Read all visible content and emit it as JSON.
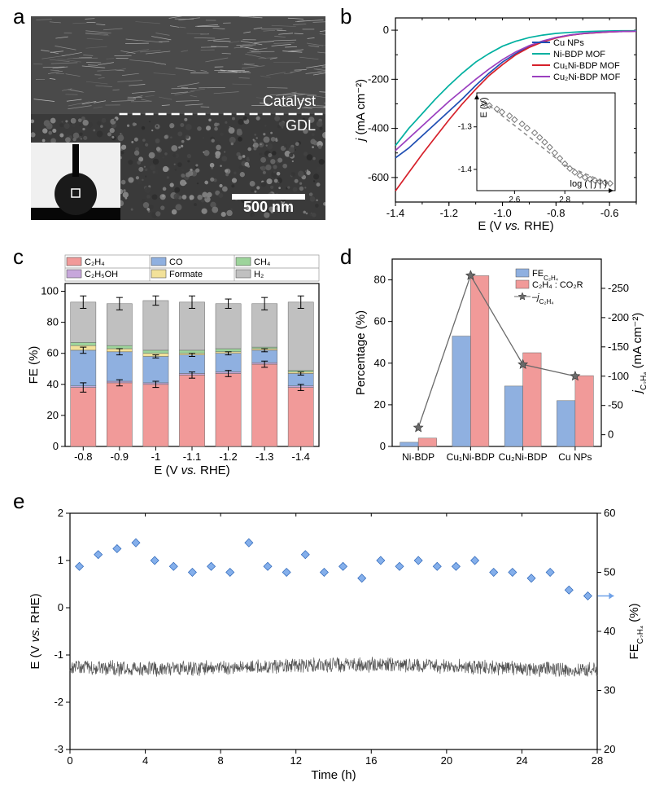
{
  "panel_labels": {
    "a": "a",
    "b": "b",
    "c": "c",
    "d": "d",
    "e": "e"
  },
  "panel_a": {
    "top_label": "Catalyst",
    "bottom_label": "GDL",
    "scale_bar_text": "500 nm",
    "label_color": "#ffffff",
    "image_bg": "#2b2b2b",
    "catalyst_bg": "#4a4a4a",
    "gdl_bg": "#3a3a3a",
    "dash_color": "#ffffff",
    "contact_bg": "#f0f0f0",
    "droplet_fill": "#1a1a1a"
  },
  "panel_b": {
    "type": "line",
    "xlabel": "E (V vs. RHE)",
    "ylabel": "j (mA cm⁻²)",
    "xlabel_label": "E (V ",
    "xlabel_vs": "vs.",
    "xlabel_RHE": " RHE)",
    "ylabel_j": "j",
    "ylabel_rest": " (mA cm⁻²)",
    "axis_color": "#000000",
    "tick_fontsize": 13,
    "label_fontsize": 15,
    "xlim": [
      -1.4,
      -0.5
    ],
    "ylim": [
      -700,
      50
    ],
    "xticks": [
      -1.4,
      -1.2,
      -1.0,
      -0.8,
      -0.6
    ],
    "yticks": [
      -600,
      -400,
      -200,
      0
    ],
    "series": [
      {
        "name": "Cu NPs",
        "color": "#1f4fb3",
        "x": [
          -1.4,
          -1.35,
          -1.3,
          -1.25,
          -1.2,
          -1.15,
          -1.1,
          -1.05,
          -1.0,
          -0.95,
          -0.9,
          -0.85,
          -0.8,
          -0.75,
          -0.7,
          -0.65,
          -0.6,
          -0.55,
          -0.5
        ],
        "y": [
          -520,
          -480,
          -430,
          -380,
          -330,
          -280,
          -225,
          -175,
          -130,
          -95,
          -65,
          -45,
          -30,
          -20,
          -14,
          -10,
          -7,
          -5,
          -4
        ]
      },
      {
        "name": "Ni-BDP MOF",
        "color": "#00b0a0",
        "x": [
          -1.4,
          -1.35,
          -1.3,
          -1.25,
          -1.2,
          -1.15,
          -1.1,
          -1.05,
          -1.0,
          -0.95,
          -0.9,
          -0.85,
          -0.8,
          -0.75,
          -0.7,
          -0.65,
          -0.6,
          -0.55,
          -0.5
        ],
        "y": [
          -470,
          -400,
          -340,
          -280,
          -225,
          -175,
          -130,
          -95,
          -65,
          -45,
          -30,
          -20,
          -13,
          -9,
          -6,
          -4,
          -3,
          -2,
          -2
        ]
      },
      {
        "name": "Cu₁Ni-BDP MOF",
        "color": "#d6202a",
        "x": [
          -1.4,
          -1.35,
          -1.3,
          -1.25,
          -1.2,
          -1.15,
          -1.1,
          -1.05,
          -1.0,
          -0.95,
          -0.9,
          -0.85,
          -0.8,
          -0.75,
          -0.7,
          -0.65,
          -0.6,
          -0.55,
          -0.5
        ],
        "y": [
          -655,
          -580,
          -505,
          -435,
          -365,
          -300,
          -240,
          -185,
          -140,
          -100,
          -70,
          -48,
          -32,
          -21,
          -14,
          -10,
          -7,
          -5,
          -4
        ]
      },
      {
        "name": "Cu₂Ni-BDP MOF",
        "color": "#9b3fbf",
        "x": [
          -1.4,
          -1.35,
          -1.3,
          -1.25,
          -1.2,
          -1.15,
          -1.1,
          -1.05,
          -1.0,
          -0.95,
          -0.9,
          -0.85,
          -0.8,
          -0.75,
          -0.7,
          -0.65,
          -0.6,
          -0.55,
          -0.5
        ],
        "y": [
          -490,
          -440,
          -390,
          -340,
          -290,
          -245,
          -200,
          -158,
          -120,
          -88,
          -63,
          -44,
          -30,
          -20,
          -13,
          -9,
          -6,
          -5,
          -4
        ]
      }
    ],
    "legend_labels": [
      "Cu NPs",
      "Ni-BDP MOF",
      "Cu₁Ni-BDP MOF",
      "Cu₂Ni-BDP MOF"
    ],
    "inset": {
      "xlabel": "log ( | j | )",
      "xlabel_log": "log ( | ",
      "xlabel_j": "j",
      "xlabel_end": " | )",
      "ylabel": "E (V)",
      "xlim": [
        2.45,
        3.0
      ],
      "ylim": [
        -1.45,
        -1.22
      ],
      "xticks": [
        2.6,
        2.8
      ],
      "yticks": [
        -1.4,
        -1.3
      ],
      "marker_color": "#777777",
      "marker": "diamond",
      "x": [
        2.48,
        2.5,
        2.53,
        2.55,
        2.58,
        2.6,
        2.63,
        2.65,
        2.68,
        2.7,
        2.72,
        2.74,
        2.76,
        2.78,
        2.8,
        2.82,
        2.84,
        2.86,
        2.88,
        2.9,
        2.92,
        2.94,
        2.96,
        2.98
      ],
      "y": [
        -1.245,
        -1.25,
        -1.258,
        -1.265,
        -1.274,
        -1.283,
        -1.293,
        -1.303,
        -1.314,
        -1.325,
        -1.336,
        -1.348,
        -1.361,
        -1.374,
        -1.387,
        -1.398,
        -1.407,
        -1.414,
        -1.419,
        -1.423,
        -1.426,
        -1.429,
        -1.431,
        -1.433
      ]
    }
  },
  "panel_c": {
    "type": "stacked-bar",
    "xlabel_label": "E (V ",
    "xlabel_vs": "vs.",
    "xlabel_RHE": " RHE)",
    "ylabel": "FE (%)",
    "ylim": [
      0,
      105
    ],
    "yticks": [
      0,
      20,
      40,
      60,
      80,
      100
    ],
    "categories": [
      "-0.8",
      "-0.9",
      "-1",
      "-1.1",
      "-1.2",
      "-1.3",
      "-1.4"
    ],
    "legend": [
      {
        "label": "C₂H₄",
        "color": "#f19a99"
      },
      {
        "label": "CO",
        "color": "#8fb0e0"
      },
      {
        "label": "CH₄",
        "color": "#9dd49b"
      },
      {
        "label": "C₂H₅OH",
        "color": "#c7a7db"
      },
      {
        "label": "Formate",
        "color": "#f2e199"
      },
      {
        "label": "H₂",
        "color": "#c0c0c0"
      }
    ],
    "stacks": [
      {
        "C2H4": 38,
        "C2H5OH": 1,
        "CO": 23,
        "Formate": 3,
        "CH4": 2,
        "H2": 26
      },
      {
        "C2H4": 41,
        "C2H5OH": 1,
        "CO": 19,
        "Formate": 2,
        "CH4": 2,
        "H2": 27
      },
      {
        "C2H4": 40,
        "C2H5OH": 1,
        "CO": 17,
        "Formate": 2,
        "CH4": 2,
        "H2": 32
      },
      {
        "C2H4": 46,
        "C2H5OH": 1,
        "CO": 12,
        "Formate": 1,
        "CH4": 2,
        "H2": 31
      },
      {
        "C2H4": 47,
        "C2H5OH": 1,
        "CO": 12,
        "Formate": 1,
        "CH4": 2,
        "H2": 29
      },
      {
        "C2H4": 53,
        "C2H5OH": 1,
        "CO": 8,
        "Formate": 1,
        "CH4": 1,
        "H2": 28
      },
      {
        "C2H4": 38,
        "C2H5OH": 1,
        "CO": 8,
        "Formate": 1,
        "CH4": 1,
        "H2": 44
      }
    ],
    "errors": [
      {
        "C2H4": 3,
        "CO": 2,
        "H2": 4
      },
      {
        "C2H4": 2,
        "CO": 2,
        "H2": 4
      },
      {
        "C2H4": 2,
        "CO": 1,
        "H2": 3
      },
      {
        "C2H4": 2,
        "CO": 1,
        "H2": 4
      },
      {
        "C2H4": 2,
        "CO": 1,
        "H2": 3
      },
      {
        "C2H4": 2,
        "CO": 1,
        "H2": 4
      },
      {
        "C2H4": 2,
        "CO": 1,
        "H2": 4
      }
    ],
    "bar_width": 0.7,
    "tick_fontsize": 13,
    "label_fontsize": 15,
    "legend_fontsize": 11
  },
  "panel_d": {
    "type": "bar-line",
    "categories": [
      "Ni-BDP",
      "Cu₁Ni-BDP",
      "Cu₂Ni-BDP",
      "Cu NPs"
    ],
    "left_ylabel": "Percentage (%)",
    "right_ylabel_j": "j",
    "right_ylabel_sub": "C₂H₄",
    "right_ylabel_unit": " (mA cm⁻²)",
    "left_ylim": [
      0,
      90
    ],
    "left_yticks": [
      0,
      20,
      40,
      60,
      80
    ],
    "right_ylim": [
      20,
      -300
    ],
    "right_yticks": [
      0,
      -50,
      -100,
      -150,
      -200,
      -250
    ],
    "legend": [
      {
        "label": "FEC₂H₄",
        "color": "#8fb0e0",
        "type": "bar",
        "label_main": "FE"
      },
      {
        "label": "C₂H₄ : CO₂R",
        "color": "#f19a99",
        "type": "bar"
      },
      {
        "label": "–jC₂H₄",
        "color": "#6a6a6a",
        "type": "line",
        "marker": "star",
        "label_dash": "–",
        "label_j": "j"
      }
    ],
    "bars": [
      {
        "FE": 2,
        "ratio": 4
      },
      {
        "FE": 53,
        "ratio": 82
      },
      {
        "FE": 29,
        "ratio": 45
      },
      {
        "FE": 22,
        "ratio": 34
      }
    ],
    "line_y_right": [
      -12,
      -272,
      -120,
      -100
    ],
    "bar_width": 0.35,
    "tick_fontsize": 13,
    "label_fontsize": 15
  },
  "panel_e": {
    "type": "time-series-dual",
    "xlabel": "Time (h)",
    "left_ylabel_E": "E (V ",
    "left_ylabel_vs": "vs.",
    "left_ylabel_RHE": " RHE)",
    "right_ylabel_FE": "FE",
    "right_ylabel_sub": "C₂H₄",
    "right_ylabel_unit": " (%)",
    "xlim": [
      0,
      28
    ],
    "xticks": [
      0,
      4,
      8,
      12,
      16,
      20,
      24,
      28
    ],
    "left_ylim": [
      -3,
      2
    ],
    "left_yticks": [
      -3,
      -2,
      -1,
      0,
      1,
      2
    ],
    "right_ylim": [
      20,
      60
    ],
    "right_yticks": [
      20,
      30,
      40,
      50,
      60
    ],
    "trace_color": "#555555",
    "trace_mean": -1.25,
    "trace_noise": 0.18,
    "diamond_color": "#6fa1e8",
    "diamond_x": [
      0.5,
      1.5,
      2.5,
      3.5,
      4.5,
      5.5,
      6.5,
      7.5,
      8.5,
      9.5,
      10.5,
      11.5,
      12.5,
      13.5,
      14.5,
      15.5,
      16.5,
      17.5,
      18.5,
      19.5,
      20.5,
      21.5,
      22.5,
      23.5,
      24.5,
      25.5,
      26.5,
      27.5
    ],
    "diamond_y": [
      51,
      53,
      54,
      55,
      52,
      51,
      50,
      51,
      50,
      55,
      51,
      50,
      53,
      50,
      51,
      49,
      52,
      51,
      52,
      51,
      51,
      52,
      50,
      50,
      49,
      50,
      47,
      46
    ],
    "arrow_color": "#6fa1e8",
    "tick_fontsize": 13,
    "label_fontsize": 15
  }
}
